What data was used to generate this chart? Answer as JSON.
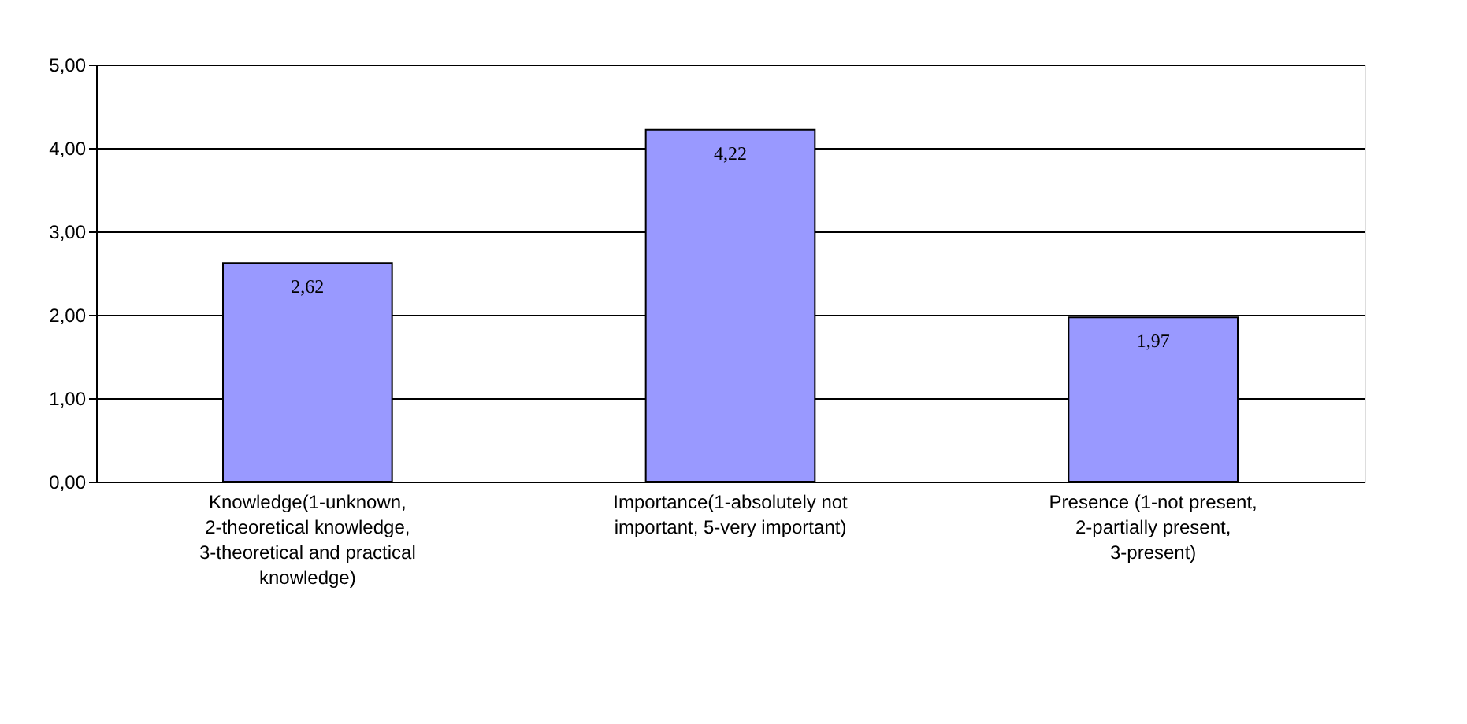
{
  "chart_data": {
    "type": "bar",
    "categories": [
      "Knowledge(1-unknown, 2-theoretical knowledge, 3-theoretical and practical knowledge)",
      "Importance(1-absolutely not important, 5-very important)",
      "Presence (1-not present, 2-partially present, 3-present)"
    ],
    "values": [
      2.62,
      4.22,
      1.97
    ],
    "value_labels": [
      "2,62",
      "4,22",
      "1,97"
    ],
    "color": "#9999ff",
    "ylim": [
      0,
      5
    ],
    "yticks": [
      {
        "value": 0,
        "label": "0,00"
      },
      {
        "value": 1,
        "label": "1,00"
      },
      {
        "value": 2,
        "label": "2,00"
      },
      {
        "value": 3,
        "label": "3,00"
      },
      {
        "value": 4,
        "label": "4,00"
      },
      {
        "value": 5,
        "label": "5,00"
      }
    ],
    "grid": "y"
  }
}
